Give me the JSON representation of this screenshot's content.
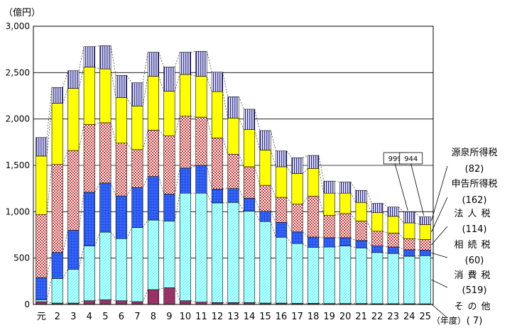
{
  "chart_data": {
    "type": "bar",
    "stacked": true,
    "unit_label": "（億円）",
    "x_unit_label": "（年度）",
    "categories": [
      "元",
      "2",
      "3",
      "4",
      "5",
      "6",
      "7",
      "8",
      "9",
      "10",
      "11",
      "12",
      "13",
      "14",
      "15",
      "16",
      "17",
      "18",
      "19",
      "20",
      "21",
      "22",
      "23",
      "24",
      "25"
    ],
    "ylim": [
      0,
      3000
    ],
    "yticks": [
      "0",
      "500",
      "1,000",
      "1,500",
      "2,000",
      "2,500",
      "3,000"
    ],
    "grid": true,
    "legend_position": "right",
    "series": [
      {
        "name": "その他",
        "value_label": "( 7)",
        "color": "#993366",
        "pattern": "solid",
        "values": [
          30,
          15,
          15,
          40,
          50,
          40,
          30,
          160,
          180,
          40,
          25,
          20,
          20,
          20,
          15,
          15,
          12,
          12,
          10,
          10,
          10,
          8,
          8,
          8,
          7
        ]
      },
      {
        "name": "消費税",
        "value_label": "(519)",
        "color": "#66ffff",
        "pattern": "diag",
        "values": [
          20,
          265,
          365,
          590,
          730,
          670,
          800,
          750,
          720,
          1160,
          1175,
          1075,
          1080,
          985,
          880,
          710,
          645,
          605,
          610,
          620,
          600,
          552,
          542,
          512,
          519
        ]
      },
      {
        "name": "相続税",
        "value_label": "(60)",
        "color": "#3366ff",
        "pattern": "grid",
        "values": [
          240,
          280,
          420,
          580,
          530,
          460,
          430,
          470,
          290,
          270,
          300,
          150,
          150,
          140,
          110,
          160,
          125,
          110,
          100,
          90,
          80,
          70,
          70,
          70,
          60
        ]
      },
      {
        "name": "法人税",
        "value_label": "(114)",
        "color": "#cc3333",
        "pattern": "dots",
        "values": [
          680,
          950,
          860,
          730,
          650,
          570,
          410,
          500,
          630,
          560,
          520,
          550,
          370,
          340,
          280,
          270,
          300,
          440,
          240,
          260,
          210,
          160,
          150,
          120,
          114
        ]
      },
      {
        "name": "申告所得税",
        "value_label": "(162)",
        "color": "#ffff00",
        "pattern": "solid",
        "values": [
          630,
          660,
          670,
          620,
          580,
          490,
          470,
          580,
          480,
          450,
          440,
          500,
          390,
          400,
          380,
          330,
          330,
          300,
          240,
          220,
          200,
          200,
          180,
          170,
          162
        ]
      },
      {
        "name": "源泉所得税",
        "value_label": "(82)",
        "color": "#333399",
        "pattern": "vstripe",
        "values": [
          200,
          170,
          190,
          220,
          250,
          240,
          250,
          260,
          260,
          240,
          270,
          210,
          230,
          220,
          210,
          170,
          170,
          140,
          130,
          120,
          130,
          100,
          100,
          119,
          82
        ]
      }
    ],
    "callouts": [
      {
        "category": "24",
        "label": "999",
        "value": 999
      },
      {
        "category": "25",
        "label": "944",
        "value": 944
      }
    ]
  }
}
